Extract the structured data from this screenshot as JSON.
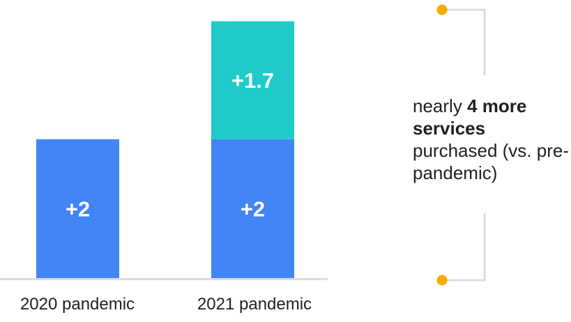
{
  "chart_data": {
    "type": "bar",
    "stacked": true,
    "categories": [
      "2020 pandemic",
      "2021 pandemic"
    ],
    "series": [
      {
        "values": [
          2,
          2
        ],
        "labels": [
          "+2",
          "+2"
        ],
        "color": "#4285f4"
      },
      {
        "values": [
          null,
          1.7
        ],
        "labels": [
          null,
          "+1.7"
        ],
        "color": "#1ecbc9"
      }
    ],
    "ylim": [
      0,
      3.7
    ],
    "grid": false
  },
  "annotation": {
    "prefix": "nearly ",
    "bold": "4 more services",
    "suffix": " purchased (vs. pre-pandemic)"
  },
  "colors": {
    "bracket_line": "#dadce0",
    "bracket_dot": "#f9ab00",
    "baseline": "#dadce0",
    "label_text": "#ffffff"
  }
}
